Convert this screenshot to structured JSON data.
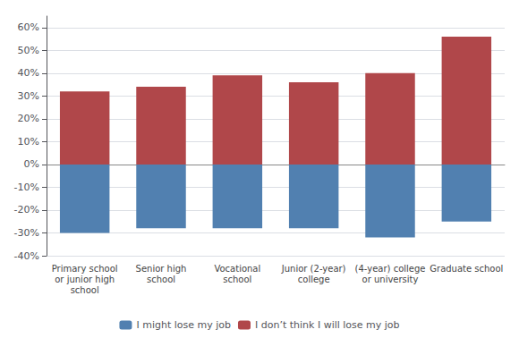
{
  "chart_data": {
    "type": "bar",
    "categories": [
      "Primary school\nor junior high\nschool",
      "Senior high\nschool",
      "Vocational\nschool",
      "Junior (2-year)\ncollege",
      "(4-year) college\nor university",
      "Graduate school"
    ],
    "series": [
      {
        "name": "I don’t think I will lose my job",
        "color": "#B0474A",
        "values": [
          32,
          34,
          39,
          36,
          40,
          56
        ]
      },
      {
        "name": "I might lose my job",
        "color": "#5180B0",
        "values": [
          -30,
          -28,
          -28,
          -28,
          -32,
          -25
        ]
      }
    ],
    "ylim": [
      -40,
      65
    ],
    "yticks": [
      {
        "value": -40,
        "label": "-40%"
      },
      {
        "value": -30,
        "label": "-30%"
      },
      {
        "value": -20,
        "label": "-20%"
      },
      {
        "value": -10,
        "label": "-10%"
      },
      {
        "value": 0,
        "label": "0%"
      },
      {
        "value": 10,
        "label": "10%"
      },
      {
        "value": 20,
        "label": "20%"
      },
      {
        "value": 30,
        "label": "30%"
      },
      {
        "value": 40,
        "label": "40%"
      },
      {
        "value": 50,
        "label": "50%"
      },
      {
        "value": 60,
        "label": "60%"
      }
    ],
    "grid": true,
    "legend": "bottom"
  }
}
